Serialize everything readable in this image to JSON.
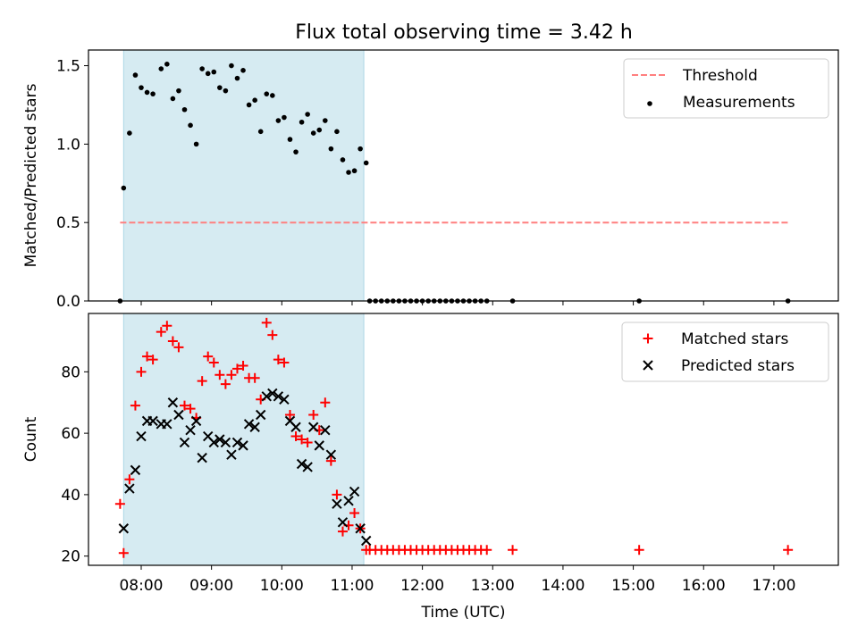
{
  "chart_data": [
    {
      "type": "scatter",
      "title": "Flux total observing time = 3.42 h",
      "xlabel": "",
      "ylabel": "Matched/Predicted stars",
      "xlim": [
        "07:15",
        "17:55"
      ],
      "ylim": [
        0,
        1.6
      ],
      "yticks": [
        "0.0",
        "0.5",
        "1.0",
        "1.5"
      ],
      "shaded_span": [
        "07:45",
        "11:10"
      ],
      "legend": {
        "placement": "top-right",
        "entries": [
          "Threshold",
          "Measurements"
        ]
      },
      "series": [
        {
          "name": "Threshold",
          "style": "dashed-line",
          "color": "#ff7f7f",
          "x": [
            "07:42",
            "17:12"
          ],
          "values": [
            0.5,
            0.5
          ]
        },
        {
          "name": "Measurements",
          "style": "dot",
          "color": "#000000",
          "x": [
            "07:42",
            "07:45",
            "07:50",
            "07:55",
            "08:00",
            "08:05",
            "08:10",
            "08:17",
            "08:22",
            "08:27",
            "08:32",
            "08:37",
            "08:42",
            "08:47",
            "08:52",
            "08:57",
            "09:02",
            "09:07",
            "09:12",
            "09:17",
            "09:22",
            "09:27",
            "09:32",
            "09:37",
            "09:42",
            "09:47",
            "09:52",
            "09:57",
            "10:02",
            "10:07",
            "10:12",
            "10:17",
            "10:22",
            "10:27",
            "10:32",
            "10:37",
            "10:42",
            "10:47",
            "10:52",
            "10:57",
            "11:02",
            "11:07",
            "11:12",
            "11:15",
            "11:20",
            "11:25",
            "11:30",
            "11:35",
            "11:40",
            "11:45",
            "11:50",
            "11:55",
            "12:00",
            "12:05",
            "12:10",
            "12:15",
            "12:20",
            "12:25",
            "12:30",
            "12:35",
            "12:40",
            "12:45",
            "12:50",
            "12:55",
            "13:17",
            "15:05",
            "17:12"
          ],
          "values": [
            0.0,
            0.72,
            1.07,
            1.44,
            1.36,
            1.33,
            1.32,
            1.48,
            1.51,
            1.29,
            1.34,
            1.22,
            1.12,
            1.0,
            1.48,
            1.45,
            1.46,
            1.36,
            1.34,
            1.5,
            1.42,
            1.47,
            1.25,
            1.28,
            1.08,
            1.32,
            1.31,
            1.15,
            1.17,
            1.03,
            0.95,
            1.14,
            1.19,
            1.07,
            1.09,
            1.15,
            0.97,
            1.08,
            0.9,
            0.82,
            0.83,
            0.97,
            0.88,
            0.0,
            0.0,
            0.0,
            0.0,
            0.0,
            0.0,
            0.0,
            0.0,
            0.0,
            0.0,
            0.0,
            0.0,
            0.0,
            0.0,
            0.0,
            0.0,
            0.0,
            0.0,
            0.0,
            0.0,
            0.0,
            0.0,
            0.0,
            0.0
          ]
        }
      ]
    },
    {
      "type": "scatter",
      "title": "",
      "xlabel": "Time (UTC)",
      "ylabel": "Count",
      "xlim": [
        "07:15",
        "17:55"
      ],
      "ylim": [
        17,
        99
      ],
      "yticks": [
        "20",
        "40",
        "60",
        "80"
      ],
      "xticks": [
        "08:00",
        "09:00",
        "10:00",
        "11:00",
        "12:00",
        "13:00",
        "14:00",
        "15:00",
        "16:00",
        "17:00"
      ],
      "shaded_span": [
        "07:45",
        "11:10"
      ],
      "legend": {
        "placement": "top-right",
        "entries": [
          "Matched stars",
          "Predicted stars"
        ]
      },
      "series": [
        {
          "name": "Matched stars",
          "style": "plus",
          "color": "#ff0000",
          "x": [
            "07:42",
            "07:45",
            "07:50",
            "07:55",
            "08:00",
            "08:05",
            "08:10",
            "08:17",
            "08:22",
            "08:27",
            "08:32",
            "08:37",
            "08:42",
            "08:47",
            "08:52",
            "08:57",
            "09:02",
            "09:07",
            "09:12",
            "09:17",
            "09:22",
            "09:27",
            "09:32",
            "09:37",
            "09:42",
            "09:47",
            "09:52",
            "09:57",
            "10:02",
            "10:07",
            "10:12",
            "10:17",
            "10:22",
            "10:27",
            "10:32",
            "10:37",
            "10:42",
            "10:47",
            "10:52",
            "10:57",
            "11:02",
            "11:07",
            "11:12",
            "11:15",
            "11:20",
            "11:25",
            "11:30",
            "11:35",
            "11:40",
            "11:45",
            "11:50",
            "11:55",
            "12:00",
            "12:05",
            "12:10",
            "12:15",
            "12:20",
            "12:25",
            "12:30",
            "12:35",
            "12:40",
            "12:45",
            "12:50",
            "12:55",
            "13:17",
            "15:05",
            "17:12"
          ],
          "values": [
            37,
            21,
            45,
            69,
            80,
            85,
            84,
            93,
            95,
            90,
            88,
            69,
            68,
            65,
            77,
            85,
            83,
            79,
            76,
            79,
            81,
            82,
            78,
            78,
            71,
            96,
            92,
            84,
            83,
            66,
            59,
            58,
            57,
            66,
            61,
            70,
            51,
            40,
            28,
            30,
            34,
            29,
            22,
            22,
            22,
            22,
            22,
            22,
            22,
            22,
            22,
            22,
            22,
            22,
            22,
            22,
            22,
            22,
            22,
            22,
            22,
            22,
            22,
            22,
            22,
            22,
            22
          ]
        },
        {
          "name": "Predicted stars",
          "style": "cross",
          "color": "#000000",
          "x": [
            "07:45",
            "07:50",
            "07:55",
            "08:00",
            "08:05",
            "08:10",
            "08:17",
            "08:22",
            "08:27",
            "08:32",
            "08:37",
            "08:42",
            "08:47",
            "08:52",
            "08:57",
            "09:02",
            "09:07",
            "09:12",
            "09:17",
            "09:22",
            "09:27",
            "09:32",
            "09:37",
            "09:42",
            "09:47",
            "09:52",
            "09:57",
            "10:02",
            "10:07",
            "10:12",
            "10:17",
            "10:22",
            "10:27",
            "10:32",
            "10:37",
            "10:42",
            "10:47",
            "10:52",
            "10:57",
            "11:02",
            "11:07",
            "11:12"
          ],
          "values": [
            29,
            42,
            48,
            59,
            64,
            64,
            63,
            63,
            70,
            66,
            57,
            61,
            64,
            52,
            59,
            57,
            58,
            57,
            53,
            57,
            56,
            63,
            62,
            66,
            72,
            73,
            72,
            71,
            64,
            62,
            50,
            49,
            62,
            56,
            61,
            53,
            37,
            31,
            38,
            41,
            29,
            25
          ]
        }
      ]
    }
  ]
}
